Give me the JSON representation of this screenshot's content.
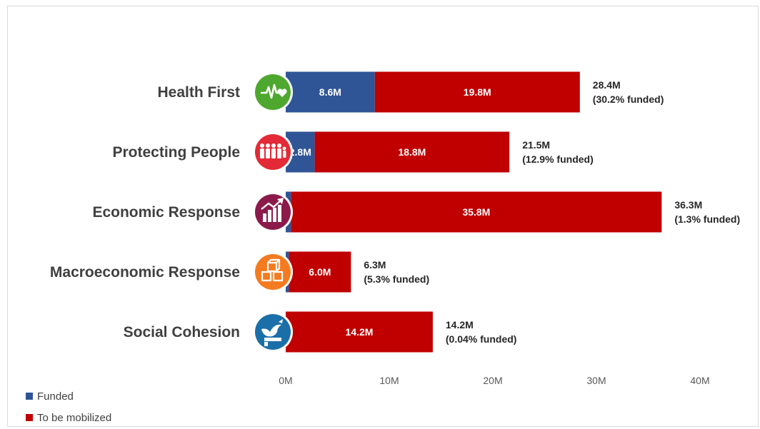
{
  "chart_data": {
    "type": "bar",
    "orientation": "horizontal",
    "stacked": true,
    "categories": [
      "Health First",
      "Protecting People",
      "Economic Response",
      "Macroeconomic Response",
      "Social Cohesion"
    ],
    "series": [
      {
        "name": "Funded",
        "color": "#2f5597",
        "values": [
          8.6,
          2.8,
          0.5,
          0.3,
          0.0
        ],
        "labels": [
          "8.6M",
          "2.8M",
          "",
          "",
          ""
        ]
      },
      {
        "name": "To be mobilized",
        "color": "#c00000",
        "values": [
          19.8,
          18.8,
          35.8,
          6.0,
          14.2
        ],
        "labels": [
          "19.8M",
          "18.8M",
          "35.8M",
          "6.0M",
          "14.2M"
        ]
      }
    ],
    "totals": [
      {
        "amount": "28.4M",
        "funded": "(30.2% funded)"
      },
      {
        "amount": "21.5M",
        "funded": "(12.9% funded)"
      },
      {
        "amount": "36.3M",
        "funded": "(1.3% funded)"
      },
      {
        "amount": "6.3M",
        "funded": "(5.3% funded)"
      },
      {
        "amount": "14.2M",
        "funded": "(0.04% funded)"
      }
    ],
    "icons": [
      {
        "name": "heartbeat-icon",
        "color": "#4ea72e"
      },
      {
        "name": "people-group-icon",
        "color": "#e32a36"
      },
      {
        "name": "growth-chart-icon",
        "color": "#8b1a4a"
      },
      {
        "name": "cubes-icon",
        "color": "#f47b20"
      },
      {
        "name": "dove-handshake-icon",
        "color": "#1b6fa8"
      }
    ],
    "xlim": [
      0,
      40
    ],
    "xticks": [
      0,
      10,
      20,
      30,
      40
    ],
    "xtick_labels": [
      "0M",
      "10M",
      "20M",
      "30M",
      "40M"
    ],
    "grid": false,
    "legend_position": "bottom-left"
  }
}
